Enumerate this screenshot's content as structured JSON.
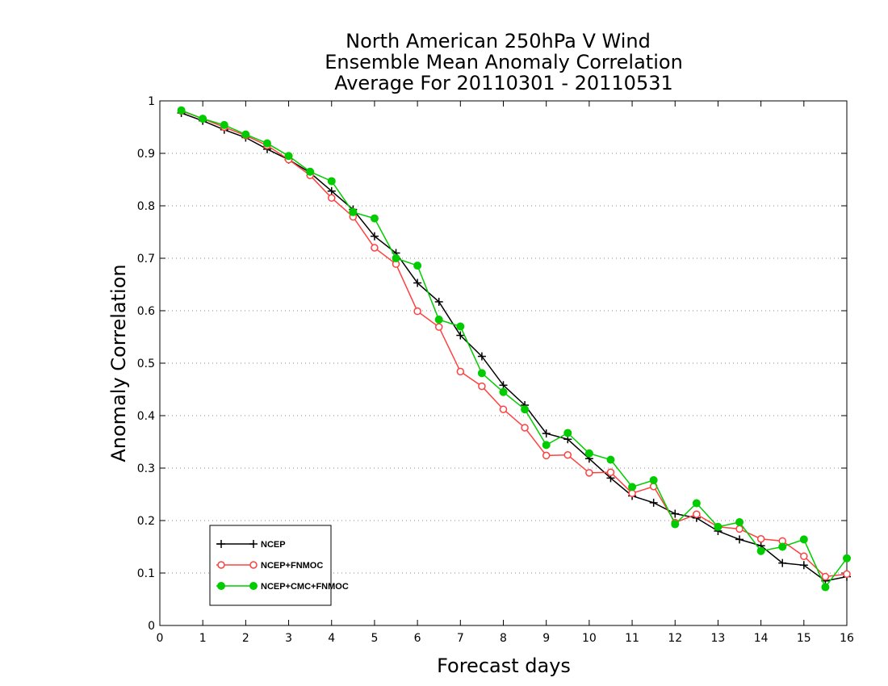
{
  "chart_data": {
    "type": "line",
    "title": [
      "North American 250hPa V Wind",
      "Ensemble Mean Anomaly Correlation",
      "Average For 20110301 - 20110531"
    ],
    "xlabel": "Forecast days",
    "ylabel": "Anomaly Correlation",
    "xlim": [
      0,
      16
    ],
    "ylim": [
      0,
      1
    ],
    "xticks": [
      "0",
      "1",
      "2",
      "3",
      "4",
      "5",
      "6",
      "7",
      "8",
      "9",
      "10",
      "11",
      "12",
      "13",
      "14",
      "15",
      "16"
    ],
    "yticks": [
      "0",
      "0.1",
      "0.2",
      "0.3",
      "0.4",
      "0.5",
      "0.6",
      "0.7",
      "0.8",
      "0.9",
      "1"
    ],
    "grid": "horizontal dotted",
    "legend_position": "bottom-left",
    "x": [
      0.5,
      1,
      1.5,
      2,
      2.5,
      3,
      3.5,
      4,
      4.5,
      5,
      5.5,
      6,
      6.5,
      7,
      7.5,
      8,
      8.5,
      9,
      9.5,
      10,
      10.5,
      11,
      11.5,
      12,
      12.5,
      13,
      13.5,
      14,
      14.5,
      15,
      15.5,
      16
    ],
    "series": [
      {
        "name": "NCEP",
        "color": "#000000",
        "marker": "plus",
        "values": [
          0.977,
          0.962,
          0.945,
          0.93,
          0.908,
          0.888,
          0.863,
          0.828,
          0.793,
          0.742,
          0.71,
          0.653,
          0.617,
          0.553,
          0.513,
          0.458,
          0.42,
          0.366,
          0.355,
          0.318,
          0.281,
          0.247,
          0.234,
          0.213,
          0.205,
          0.18,
          0.164,
          0.152,
          0.119,
          0.115,
          0.085,
          0.093
        ]
      },
      {
        "name": "NCEP+FNMOC",
        "color": "#ff4040",
        "marker": "open-circle",
        "values": [
          0.981,
          0.966,
          0.95,
          0.934,
          0.915,
          0.888,
          0.858,
          0.815,
          0.779,
          0.72,
          0.689,
          0.599,
          0.569,
          0.484,
          0.456,
          0.412,
          0.377,
          0.324,
          0.325,
          0.291,
          0.292,
          0.252,
          0.265,
          0.196,
          0.212,
          0.188,
          0.184,
          0.165,
          0.161,
          0.132,
          0.093,
          0.098
        ]
      },
      {
        "name": "NCEP+CMC+FNMOC",
        "color": "#00cc00",
        "marker": "filled-circle",
        "values": [
          0.982,
          0.966,
          0.954,
          0.936,
          0.919,
          0.895,
          0.865,
          0.847,
          0.788,
          0.776,
          0.7,
          0.686,
          0.583,
          0.57,
          0.481,
          0.445,
          0.412,
          0.344,
          0.367,
          0.328,
          0.316,
          0.264,
          0.277,
          0.193,
          0.233,
          0.188,
          0.197,
          0.142,
          0.15,
          0.164,
          0.073,
          0.128
        ]
      }
    ]
  }
}
